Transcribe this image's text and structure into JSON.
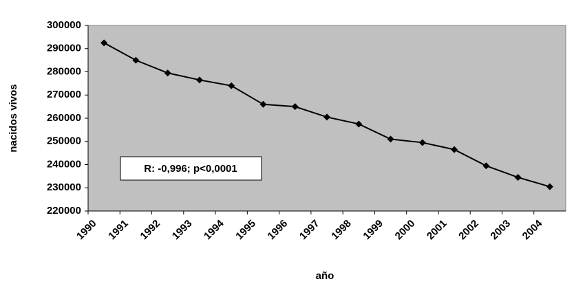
{
  "chart_data": {
    "type": "line",
    "x_label": "año",
    "y_label": "nacidos vivos",
    "annotation": "R: -0,996; p<0,0001",
    "categories": [
      "1990",
      "1991",
      "1992",
      "1993",
      "1994",
      "1995",
      "1996",
      "1997",
      "1998",
      "1999",
      "2000",
      "2001",
      "2002",
      "2003",
      "2004"
    ],
    "series": [
      {
        "name": "nacidos vivos",
        "color": "#000000",
        "values": [
          292500,
          285000,
          279500,
          276500,
          274000,
          266000,
          265000,
          260500,
          257500,
          251000,
          249500,
          246500,
          239500,
          234500,
          230500
        ]
      }
    ],
    "ylim": [
      220000,
      300000
    ],
    "yticks": [
      220000,
      230000,
      240000,
      250000,
      260000,
      270000,
      280000,
      290000,
      300000
    ],
    "plot_background": "#c0c0c0"
  }
}
